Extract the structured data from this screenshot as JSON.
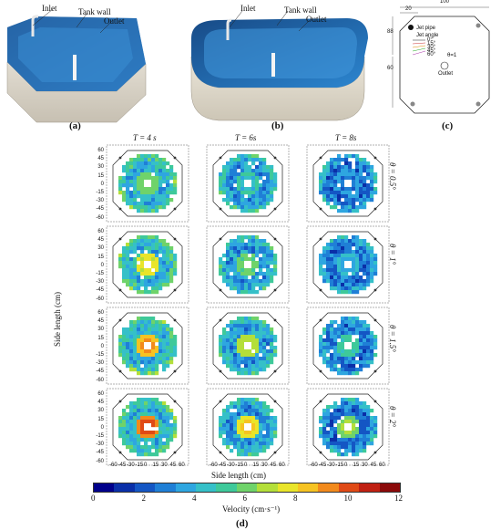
{
  "figure": {
    "panel_a": {
      "label": "(a)",
      "inlet": "Inlet",
      "tank_wall": "Tank wall",
      "outlet": "Outlet"
    },
    "panel_b": {
      "label": "(b)",
      "inlet": "Inlet",
      "tank_wall": "Tank wall",
      "outlet": "Outlet"
    },
    "panel_c": {
      "label": "(c)",
      "top_dim": "100",
      "corner_dim": "20",
      "left_dim_1": "88",
      "left_dim_2": "60",
      "jet_pipe": "Jet pipe",
      "jet_angle": "Jet angle",
      "angles": [
        "0°",
        "15°",
        "30°",
        "45°",
        "60°"
      ],
      "outlet": "Outlet",
      "theta": "θ=1"
    },
    "panel_d": {
      "label": "(d)",
      "col_titles": [
        "T = 4 s",
        "T = 6s",
        "T = 8s"
      ],
      "row_labels": [
        "θ = 0.5°",
        "θ = 1°",
        "θ = 1.5°",
        "θ = 2°"
      ],
      "y_axis_label": "Side length (cm)",
      "x_axis_label": "Side length (cm)",
      "ticks": [
        "60",
        "45",
        "30",
        "15",
        "0",
        "-15",
        "-30",
        "-45",
        "-60"
      ],
      "x_ticks": [
        "-60",
        "-45",
        "-30",
        "-15",
        "0",
        "15",
        "30",
        "45",
        "60"
      ],
      "colorbar_label": "Velocity (cm·s⁻¹)",
      "colorbar_ticks": [
        "0",
        "2",
        "4",
        "6",
        "8",
        "10",
        "12"
      ],
      "colorbar_colors": [
        "#00008b",
        "#0a2fa8",
        "#1456c4",
        "#1f7fd6",
        "#2ea6e0",
        "#35c0c8",
        "#3ec99a",
        "#6fd36a",
        "#b4df3a",
        "#e9e52a",
        "#f6c322",
        "#f28a1c",
        "#e04a16",
        "#c02012",
        "#8b0a0a"
      ]
    }
  }
}
